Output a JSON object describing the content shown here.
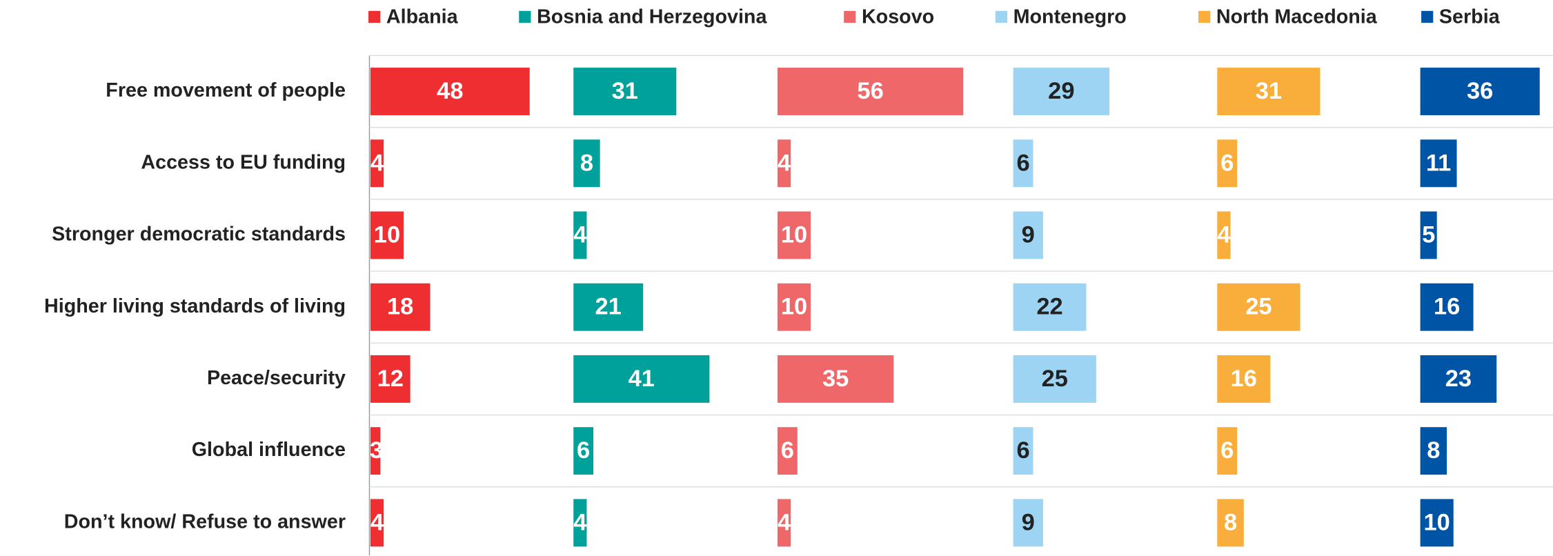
{
  "chart_data": {
    "type": "bar",
    "orientation": "horizontal",
    "categories": [
      "Free movement of people",
      "Access to EU funding",
      "Stronger democratic standards",
      "Higher living standards of living",
      "Peace/security",
      "Global influence",
      "Don’t know/ Refuse to answer"
    ],
    "series": [
      {
        "name": "Albania",
        "color": "#ee2e31",
        "label_color": "#ffffff",
        "values": [
          48,
          4,
          10,
          18,
          12,
          3,
          4
        ]
      },
      {
        "name": "Bosnia and Herzegovina",
        "color": "#00a19a",
        "label_color": "#ffffff",
        "values": [
          31,
          8,
          4,
          21,
          41,
          6,
          4
        ]
      },
      {
        "name": "Kosovo",
        "color": "#f0676a",
        "label_color": "#ffffff",
        "values": [
          56,
          4,
          10,
          10,
          35,
          6,
          4
        ]
      },
      {
        "name": "Montenegro",
        "color": "#9dd4f3",
        "label_color": "#222222",
        "values": [
          29,
          6,
          9,
          22,
          25,
          6,
          9
        ]
      },
      {
        "name": "North Macedonia",
        "color": "#f9ad3b",
        "label_color": "#ffffff",
        "values": [
          31,
          6,
          4,
          25,
          16,
          6,
          8
        ]
      },
      {
        "name": "Serbia",
        "color": "#0054a5",
        "label_color": "#ffffff",
        "values": [
          36,
          11,
          5,
          16,
          23,
          8,
          10
        ]
      }
    ],
    "legend": "top"
  }
}
